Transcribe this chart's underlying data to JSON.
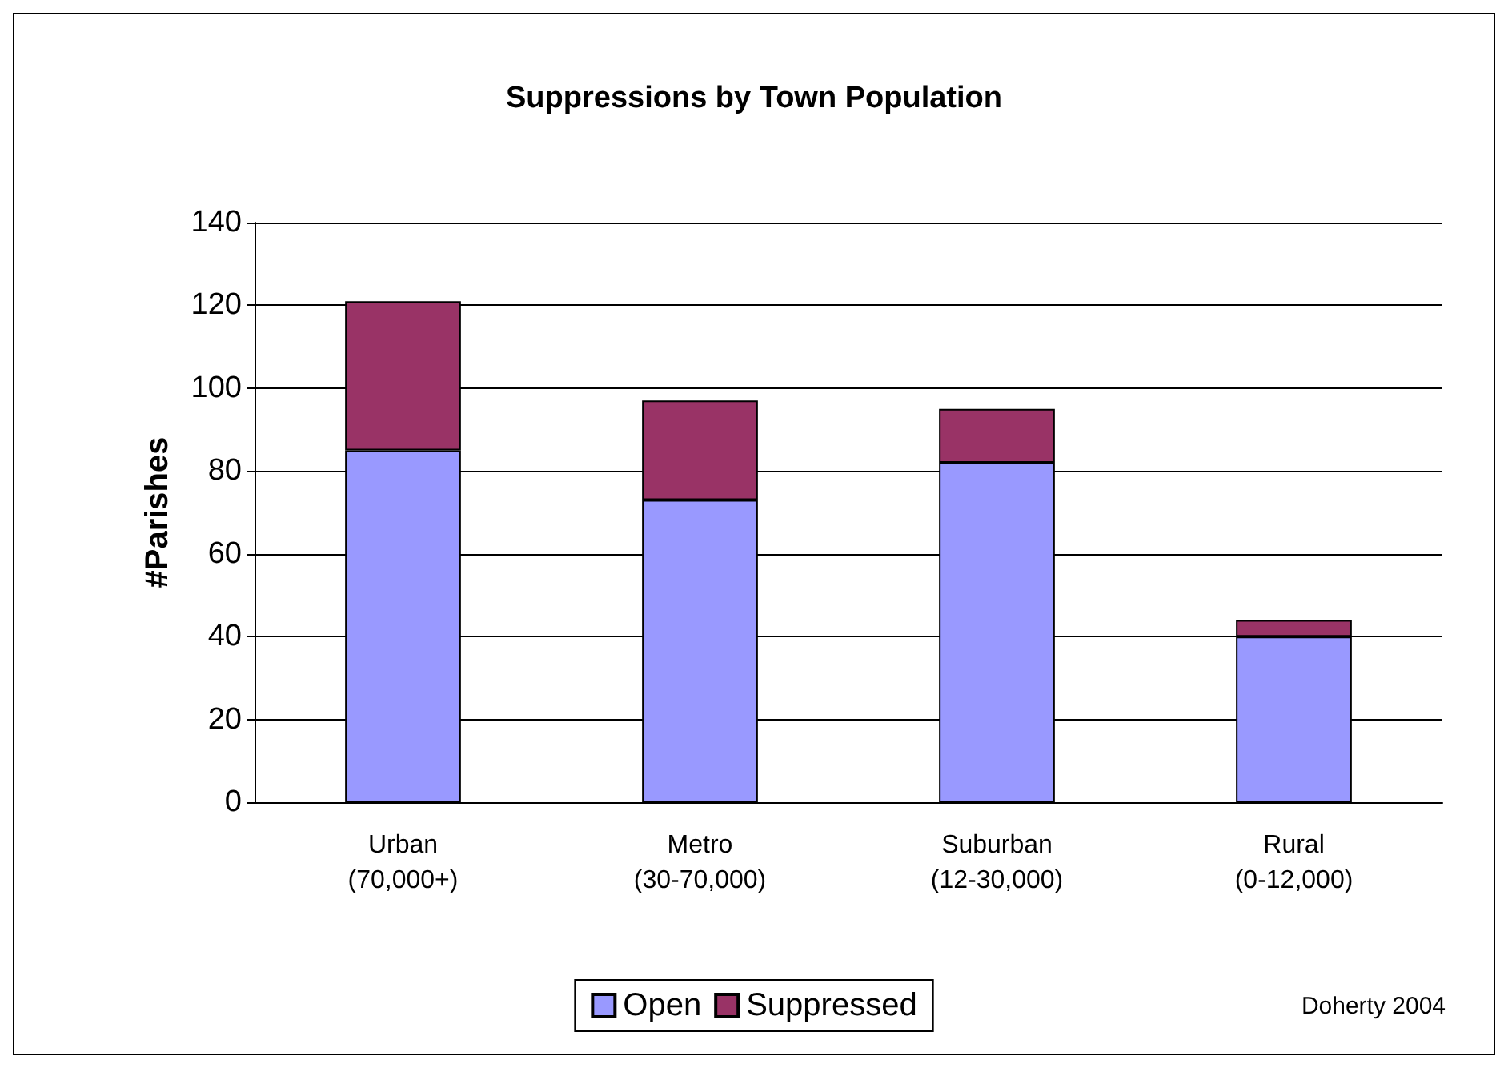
{
  "chart_data": {
    "type": "bar",
    "title": "Suppressions by Town Population",
    "ylabel": "#Parishes",
    "categories": [
      "Urban\n(70,000+)",
      "Metro\n(30-70,000)",
      "Suburban\n(12-30,000)",
      "Rural\n(0-12,000)"
    ],
    "series": [
      {
        "name": "Open",
        "color": "#9999ff",
        "values": [
          85,
          73,
          82,
          40
        ]
      },
      {
        "name": "Suppressed",
        "color": "#993366",
        "values": [
          36,
          24,
          13,
          4
        ]
      }
    ],
    "stacked": true,
    "ylim": [
      0,
      140
    ],
    "yticks": [
      0,
      20,
      40,
      60,
      80,
      100,
      120,
      140
    ],
    "grid": "y",
    "legend": "bottom",
    "annotations": [
      "Doherty 2004"
    ]
  }
}
